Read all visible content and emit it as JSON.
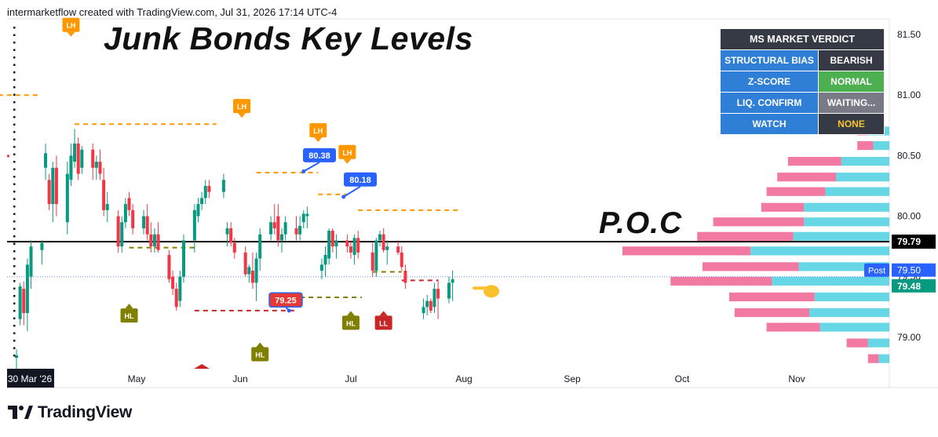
{
  "header": {
    "attribution": "intermarketflow created with TradingView.com, Jul 31, 2026 17:14 UTC-4",
    "title": "Junk Bonds Key Levels",
    "poc_label": "P.O.C"
  },
  "verdict_panel": {
    "title": "MS MARKET VERDICT",
    "rows": [
      {
        "label": "STRUCTURAL BIAS",
        "value": "BEARISH",
        "style": "dark"
      },
      {
        "label": "Z-SCORE",
        "value": "NORMAL",
        "style": "green"
      },
      {
        "label": "LIQ. CONFIRM",
        "value": "WAITING...",
        "style": "grey"
      },
      {
        "label": "WATCH",
        "value": "NONE",
        "style": "dark-y"
      }
    ]
  },
  "footer": {
    "brand": "TradingView"
  },
  "chart_data": {
    "type": "candlestick",
    "colors": {
      "up": "#089981",
      "down": "#f23645",
      "lh": "#ff9800",
      "hl": "#808000",
      "ll": "#c62828",
      "callout": "#2962ff",
      "poc": "#000000",
      "vp_pink": "#f06292",
      "vp_cyan": "#4dd0e1"
    },
    "x_axis": {
      "ticks": [
        "30 Mar '26",
        "May",
        "Jun",
        "Jul",
        "Aug",
        "Sep",
        "Oct",
        "Nov"
      ],
      "start": "2026-03-30"
    },
    "y_axis": {
      "ticks": [
        79.0,
        79.5,
        80.0,
        80.5,
        81.0,
        81.5
      ],
      "range": [
        78.74,
        81.63
      ]
    },
    "candles": [
      [
        78.83,
        78.9,
        78.72,
        78.85
      ],
      [
        79.15,
        79.45,
        79.1,
        79.42
      ],
      [
        79.4,
        79.46,
        79.1,
        79.2
      ],
      [
        79.2,
        79.65,
        79.05,
        79.6
      ],
      [
        79.5,
        79.8,
        79.4,
        79.75
      ],
      [
        79.72,
        79.8,
        79.6,
        79.78
      ],
      [
        80.4,
        80.6,
        80.3,
        80.52
      ],
      [
        80.3,
        80.35,
        80.05,
        80.1
      ],
      [
        80.1,
        80.45,
        79.95,
        80.4
      ],
      [
        80.4,
        80.5,
        80.0,
        80.1
      ],
      [
        79.95,
        80.45,
        79.85,
        80.35
      ],
      [
        80.3,
        80.6,
        80.25,
        80.5
      ],
      [
        80.45,
        80.72,
        80.4,
        80.6
      ],
      [
        80.6,
        80.65,
        80.3,
        80.35
      ],
      [
        80.4,
        80.58,
        80.35,
        80.55
      ],
      [
        80.55,
        80.6,
        80.3,
        80.4
      ],
      [
        80.4,
        80.5,
        80.3,
        80.45
      ],
      [
        80.45,
        80.55,
        80.3,
        80.35
      ],
      [
        80.3,
        80.4,
        80.0,
        80.05
      ],
      [
        80.05,
        80.2,
        79.95,
        80.1
      ],
      [
        80.0,
        80.05,
        79.7,
        79.75
      ],
      [
        79.75,
        80.0,
        79.7,
        79.95
      ],
      [
        79.95,
        80.15,
        79.9,
        80.1
      ],
      [
        80.15,
        80.2,
        80.0,
        80.05
      ],
      [
        80.05,
        80.1,
        79.85,
        79.9
      ],
      [
        79.9,
        80.05,
        79.85,
        80.0
      ],
      [
        80.0,
        80.1,
        79.8,
        79.85
      ],
      [
        79.85,
        79.95,
        79.7,
        79.75
      ],
      [
        79.75,
        79.9,
        79.7,
        79.85
      ],
      [
        79.85,
        79.95,
        79.7,
        79.72
      ],
      [
        79.68,
        79.72,
        79.45,
        79.48
      ],
      [
        79.5,
        79.55,
        79.35,
        79.4
      ],
      [
        79.4,
        79.45,
        79.22,
        79.25
      ],
      [
        79.3,
        79.55,
        79.25,
        79.5
      ],
      [
        79.5,
        79.85,
        79.45,
        79.8
      ],
      [
        79.8,
        80.1,
        79.7,
        80.05
      ],
      [
        80.0,
        80.15,
        79.95,
        80.1
      ],
      [
        80.1,
        80.2,
        80.05,
        80.15
      ],
      [
        80.15,
        80.3,
        80.1,
        80.25
      ],
      [
        80.25,
        80.3,
        80.15,
        80.2
      ],
      [
        80.2,
        80.35,
        80.15,
        80.3
      ],
      [
        79.85,
        79.95,
        79.75,
        79.9
      ],
      [
        79.9,
        79.95,
        79.75,
        79.78
      ],
      [
        79.78,
        79.82,
        79.65,
        79.7
      ],
      [
        79.7,
        79.75,
        79.5,
        79.52
      ],
      [
        79.52,
        79.6,
        79.45,
        79.58
      ],
      [
        79.55,
        79.7,
        79.4,
        79.45
      ],
      [
        79.45,
        79.7,
        79.3,
        79.65
      ],
      [
        79.65,
        79.9,
        79.55,
        79.85
      ],
      [
        79.85,
        80.0,
        79.8,
        79.95
      ],
      [
        79.95,
        80.1,
        79.85,
        79.9
      ],
      [
        80.0,
        80.1,
        79.75,
        79.8
      ],
      [
        79.8,
        79.9,
        79.7,
        79.85
      ],
      [
        79.85,
        80.0,
        79.8,
        79.95
      ],
      [
        79.9,
        80.0,
        79.8,
        79.85
      ],
      [
        79.85,
        80.0,
        79.8,
        79.92
      ],
      [
        79.95,
        80.05,
        79.9,
        80.02
      ],
      [
        80.0,
        80.08,
        79.9,
        80.02
      ],
      [
        79.55,
        79.65,
        79.48,
        79.6
      ],
      [
        79.6,
        79.75,
        79.5,
        79.68
      ],
      [
        79.65,
        79.9,
        79.6,
        79.88
      ],
      [
        79.88,
        79.9,
        79.7,
        79.75
      ],
      [
        79.75,
        79.85,
        79.65,
        79.8
      ],
      [
        79.8,
        79.85,
        79.7,
        79.75
      ],
      [
        79.75,
        79.8,
        79.65,
        79.7
      ],
      [
        79.68,
        79.85,
        79.6,
        79.82
      ],
      [
        79.82,
        79.88,
        79.65,
        79.7
      ],
      [
        79.7,
        79.78,
        79.5,
        79.55
      ],
      [
        79.55,
        79.82,
        79.5,
        79.8
      ],
      [
        79.8,
        79.88,
        79.75,
        79.85
      ],
      [
        79.85,
        79.9,
        79.7,
        79.72
      ],
      [
        79.72,
        79.8,
        79.6,
        79.75
      ],
      [
        79.75,
        79.8,
        79.68,
        79.7
      ],
      [
        79.7,
        79.75,
        79.55,
        79.58
      ],
      [
        79.55,
        79.6,
        79.4,
        79.45
      ],
      [
        79.2,
        79.32,
        79.15,
        79.25
      ],
      [
        79.25,
        79.35,
        79.18,
        79.3
      ],
      [
        79.3,
        79.32,
        79.2,
        79.22
      ],
      [
        79.25,
        79.45,
        79.2,
        79.4
      ],
      [
        79.4,
        79.48,
        79.15,
        79.32
      ],
      [
        79.32,
        79.5,
        79.28,
        79.45
      ],
      [
        79.45,
        79.55,
        79.3,
        79.48
      ]
    ],
    "candle_dates": [
      "2026-03-30",
      "2026-03-31",
      "2026-04-01",
      "2026-04-02",
      "2026-04-03",
      "2026-04-06",
      "2026-04-07",
      "2026-04-08",
      "2026-04-09",
      "2026-04-10",
      "2026-04-13",
      "2026-04-14",
      "2026-04-15",
      "2026-04-16",
      "2026-04-17",
      "2026-04-20",
      "2026-04-21",
      "2026-04-22",
      "2026-04-23",
      "2026-04-24",
      "2026-04-27",
      "2026-04-28",
      "2026-04-29",
      "2026-04-30",
      "2026-05-01",
      "2026-05-04",
      "2026-05-05",
      "2026-05-06",
      "2026-05-07",
      "2026-05-08",
      "2026-05-11",
      "2026-05-12",
      "2026-05-13",
      "2026-05-14",
      "2026-05-15",
      "2026-05-18",
      "2026-05-19",
      "2026-05-20",
      "2026-05-21",
      "2026-05-22",
      "2026-05-26",
      "2026-05-27",
      "2026-05-28",
      "2026-05-29",
      "2026-06-01",
      "2026-06-02",
      "2026-06-03",
      "2026-06-04",
      "2026-06-05",
      "2026-06-08",
      "2026-06-09",
      "2026-06-10",
      "2026-06-11",
      "2026-06-12",
      "2026-06-15",
      "2026-06-16",
      "2026-06-17",
      "2026-06-18",
      "2026-06-22",
      "2026-06-23",
      "2026-06-24",
      "2026-06-25",
      "2026-06-26",
      "2026-06-29",
      "2026-06-30",
      "2026-07-01",
      "2026-07-02",
      "2026-07-06",
      "2026-07-07",
      "2026-07-08",
      "2026-07-09",
      "2026-07-10",
      "2026-07-13",
      "2026-07-14",
      "2026-07-15",
      "2026-07-20",
      "2026-07-21",
      "2026-07-22",
      "2026-07-23",
      "2026-07-24",
      "2026-07-27",
      "2026-07-28"
    ],
    "poc_line": {
      "value": 79.79,
      "label": "79.79"
    },
    "price_labels": [
      {
        "text": "Post",
        "value": 79.5,
        "color": "#2962ff"
      },
      {
        "text": "79.50",
        "value": 79.5,
        "color": "#2962ff"
      },
      {
        "text": "79.48",
        "value": 79.48,
        "color": "#089981"
      }
    ],
    "levels": [
      {
        "type": "LH",
        "value": 81.0,
        "from": "2026-03-25",
        "to": "2026-04-05"
      },
      {
        "type": "LH",
        "value": 80.76,
        "from": "2026-04-15",
        "to": "2026-05-24"
      },
      {
        "type": "LH",
        "value": 80.36,
        "from": "2026-06-04",
        "to": "2026-06-21"
      },
      {
        "type": "LH",
        "value": 80.18,
        "from": "2026-06-21",
        "to": "2026-06-29"
      },
      {
        "type": "LH",
        "value": 80.05,
        "from": "2026-07-02",
        "to": "2026-07-30"
      },
      {
        "type": "HL",
        "value": 79.74,
        "from": "2026-04-30",
        "to": "2026-05-19"
      },
      {
        "type": "HL",
        "value": 79.33,
        "from": "2026-06-16",
        "to": "2026-07-03"
      },
      {
        "type": "HL",
        "value": 79.54,
        "from": "2026-07-06",
        "to": "2026-07-14"
      },
      {
        "type": "LL",
        "value": 79.22,
        "from": "2026-05-18",
        "to": "2026-06-15"
      },
      {
        "type": "LL",
        "value": 79.47,
        "from": "2026-07-14",
        "to": "2026-07-24"
      }
    ],
    "markers": [
      {
        "text": "LH",
        "date": "2026-04-14",
        "value": 81.58,
        "kind": "LH"
      },
      {
        "text": "LH",
        "date": "2026-05-31",
        "value": 80.91,
        "kind": "LH"
      },
      {
        "text": "LH",
        "date": "2026-06-21",
        "value": 80.71,
        "kind": "LH"
      },
      {
        "text": "LH",
        "date": "2026-06-29",
        "value": 80.53,
        "kind": "LH"
      },
      {
        "text": "HL",
        "date": "2026-04-30",
        "value": 79.18,
        "kind": "HL"
      },
      {
        "text": "HL",
        "date": "2026-06-05",
        "value": 78.86,
        "kind": "HL"
      },
      {
        "text": "HL",
        "date": "2026-06-30",
        "value": 79.12,
        "kind": "HL"
      },
      {
        "text": "LL",
        "date": "2026-07-09",
        "value": 79.12,
        "kind": "LL"
      }
    ],
    "callouts": [
      {
        "text": "80.38",
        "value": 80.38,
        "anchor_date": "2026-06-17",
        "anchor_value": 80.37
      },
      {
        "text": "80.18",
        "value": 80.18,
        "anchor_date": "2026-06-28",
        "anchor_value": 80.16
      },
      {
        "text": "79.25",
        "value": 79.25,
        "anchor_date": "2026-06-13",
        "anchor_value": 79.22
      }
    ],
    "volume_profile": [
      {
        "price": 80.7,
        "down": 0.2,
        "up": 0.4
      },
      {
        "price": 80.58,
        "down": 0.3,
        "up": 0.3
      },
      {
        "price": 80.45,
        "down": 1.0,
        "up": 0.9
      },
      {
        "price": 80.32,
        "down": 1.1,
        "up": 1.0
      },
      {
        "price": 80.2,
        "down": 1.1,
        "up": 1.2
      },
      {
        "price": 80.07,
        "down": 0.8,
        "up": 1.6
      },
      {
        "price": 79.95,
        "down": 1.7,
        "up": 1.6
      },
      {
        "price": 79.83,
        "down": 1.8,
        "up": 1.8
      },
      {
        "price": 79.71,
        "down": 2.4,
        "up": 2.6
      },
      {
        "price": 79.58,
        "down": 1.8,
        "up": 1.7
      },
      {
        "price": 79.46,
        "down": 1.9,
        "up": 2.2
      },
      {
        "price": 79.33,
        "down": 1.6,
        "up": 1.4
      },
      {
        "price": 79.2,
        "down": 1.4,
        "up": 1.5
      },
      {
        "price": 79.08,
        "down": 1.0,
        "up": 1.3
      },
      {
        "price": 78.95,
        "down": 0.4,
        "up": 0.4
      },
      {
        "price": 78.82,
        "down": 0.2,
        "up": 0.2
      }
    ]
  }
}
